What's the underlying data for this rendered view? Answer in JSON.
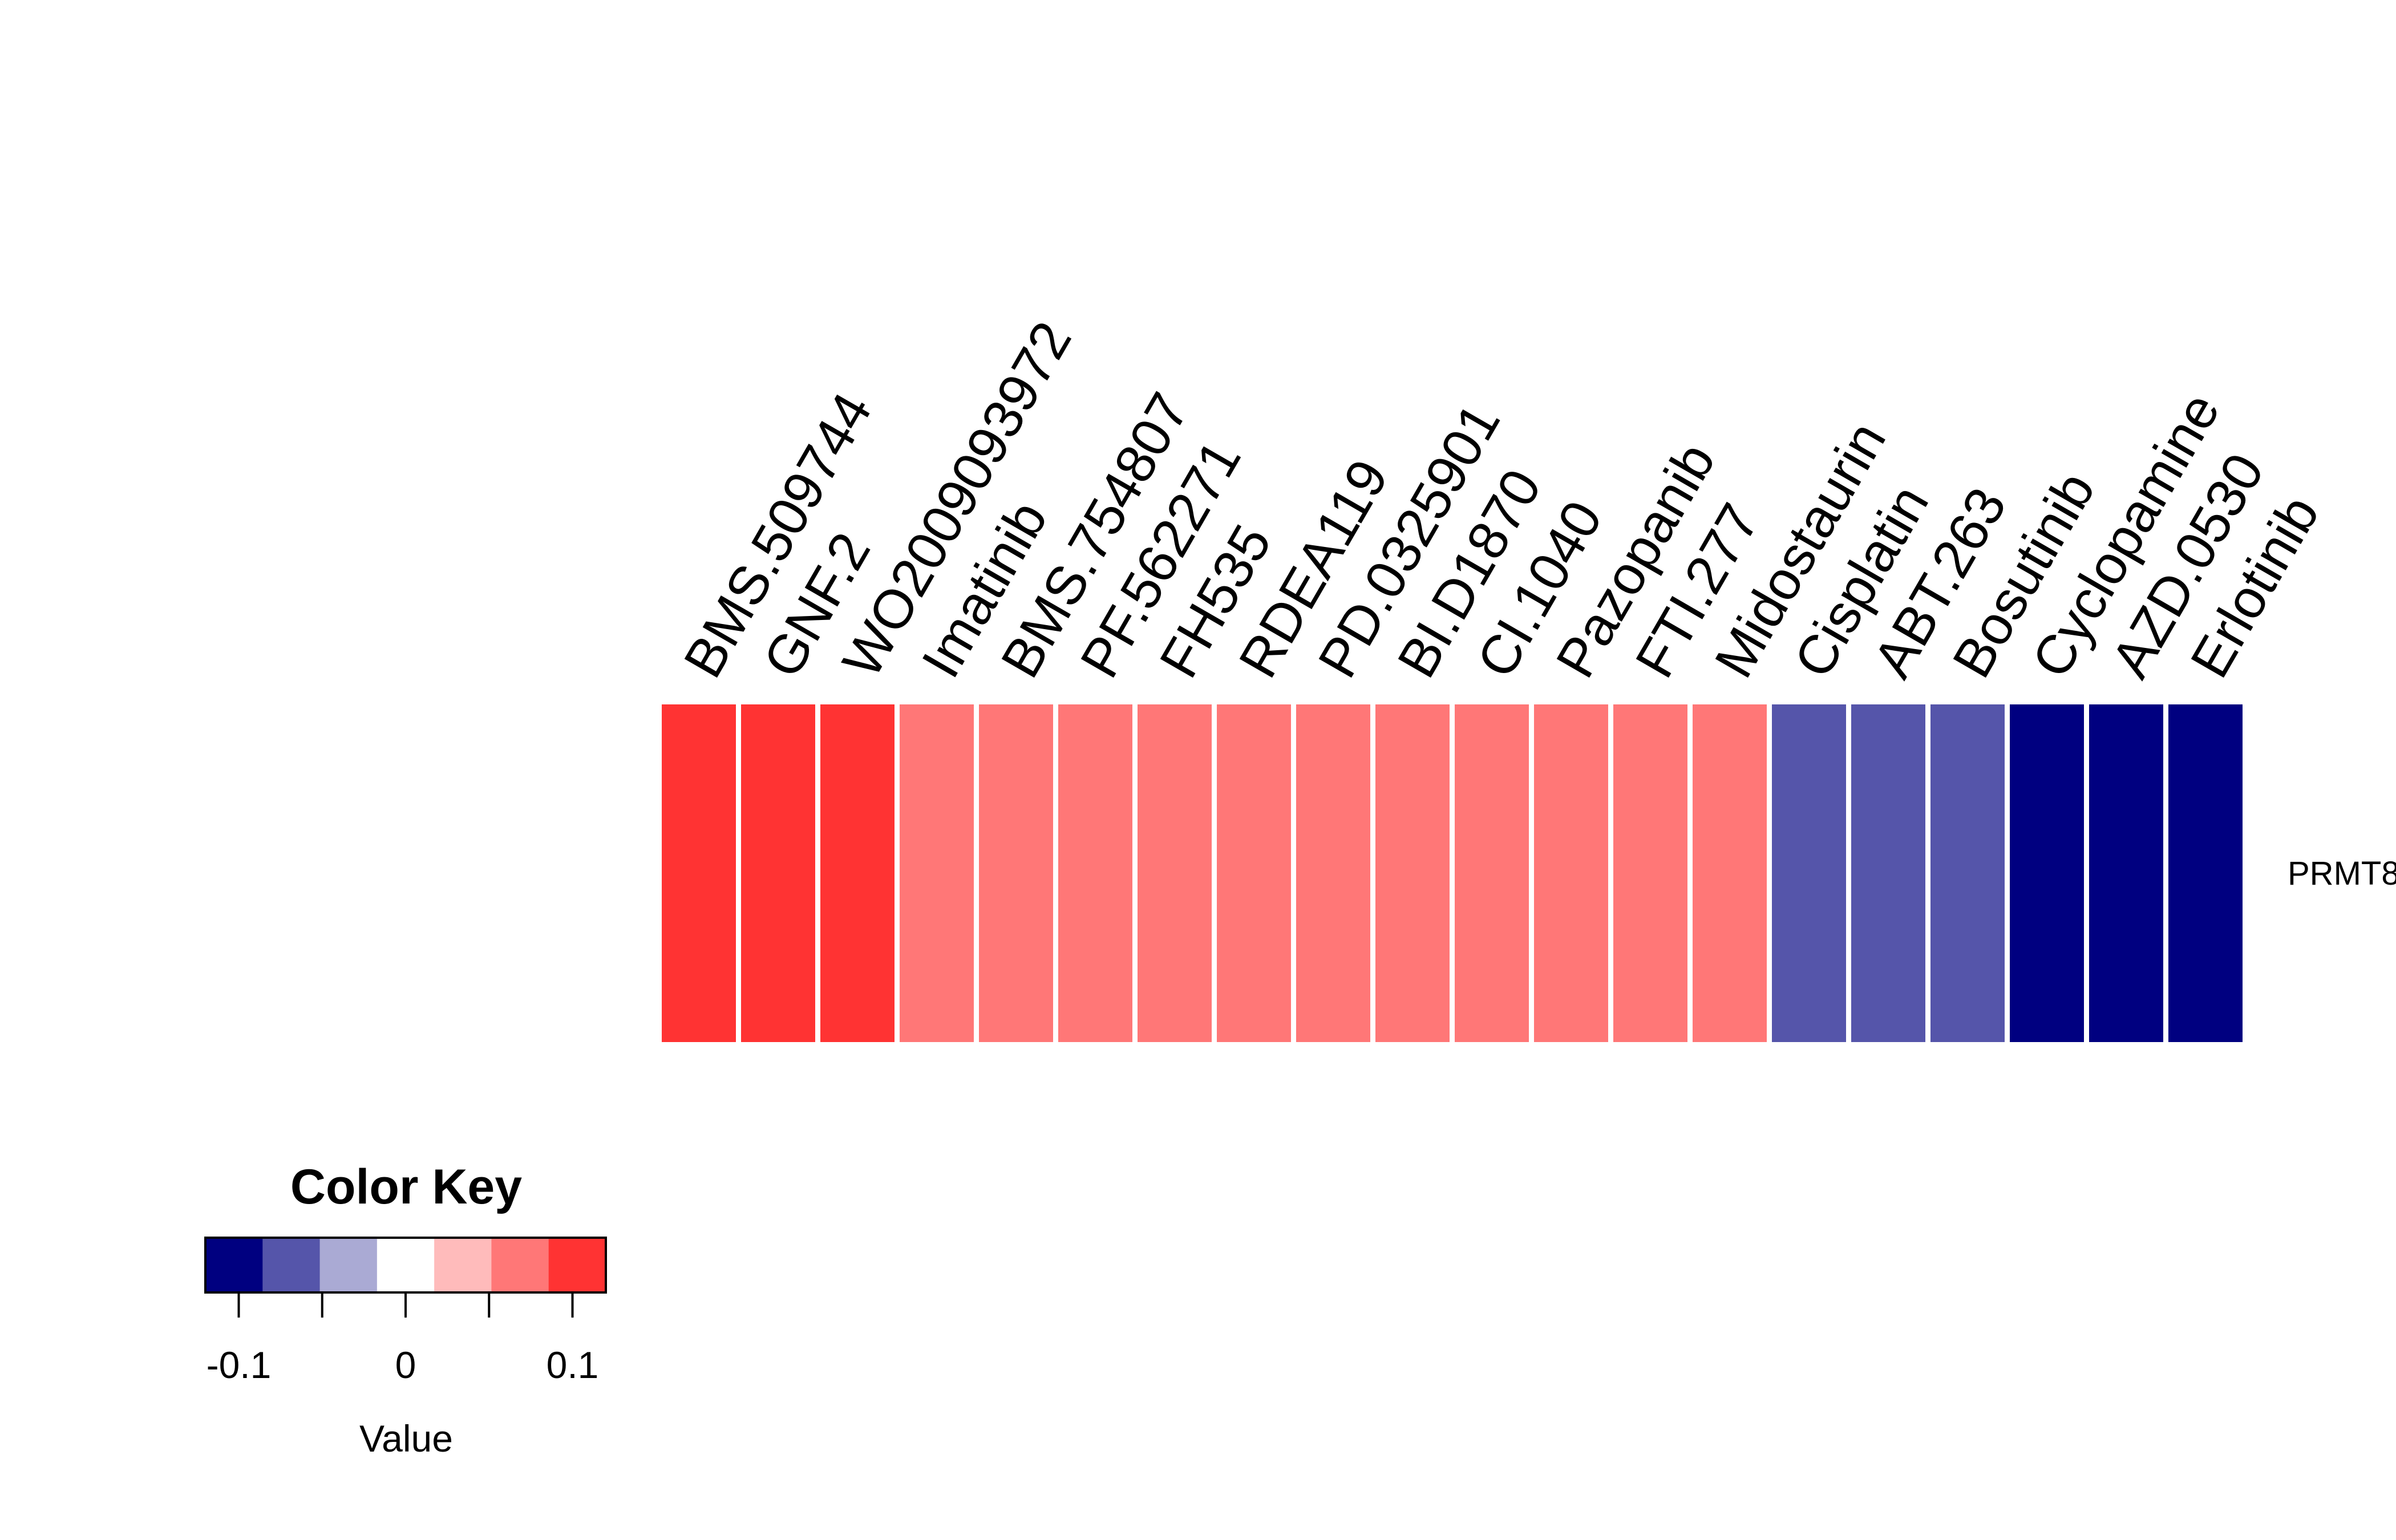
{
  "chart_data": {
    "type": "heatmap",
    "columns": [
      "BMS.509744",
      "GNF.2",
      "WO2009093972",
      "Imatinib",
      "BMS.754807",
      "PF.562271",
      "FH535",
      "RDEA119",
      "PD.0325901",
      "BI.D1870",
      "CI.1040",
      "Pazopanib",
      "FTI.277",
      "Midostaurin",
      "Cisplatin",
      "ABT.263",
      "Bosutinib",
      "Cyclopamine",
      "AZD.0530",
      "Erlotinib"
    ],
    "rows": [
      "PRMT8"
    ],
    "values": [
      [
        0.11,
        0.11,
        0.11,
        0.07,
        0.07,
        0.07,
        0.07,
        0.07,
        0.07,
        0.07,
        0.07,
        0.07,
        0.07,
        0.07,
        -0.07,
        -0.07,
        -0.07,
        -0.11,
        -0.11,
        -0.11
      ]
    ],
    "color_key": {
      "title": "Color Key",
      "xlabel": "Value",
      "range": [
        -0.12,
        0.12
      ],
      "bin_colors": [
        "#000080",
        "#5555AA",
        "#AAAAD4",
        "#FFFFFF",
        "#FFBBBB",
        "#FF7777",
        "#FF3333"
      ],
      "ticks": [
        -0.1,
        -0.05,
        0,
        0.05,
        0.1
      ],
      "tick_labels": [
        "-0.1",
        "",
        "0",
        "",
        "0.1"
      ]
    }
  }
}
